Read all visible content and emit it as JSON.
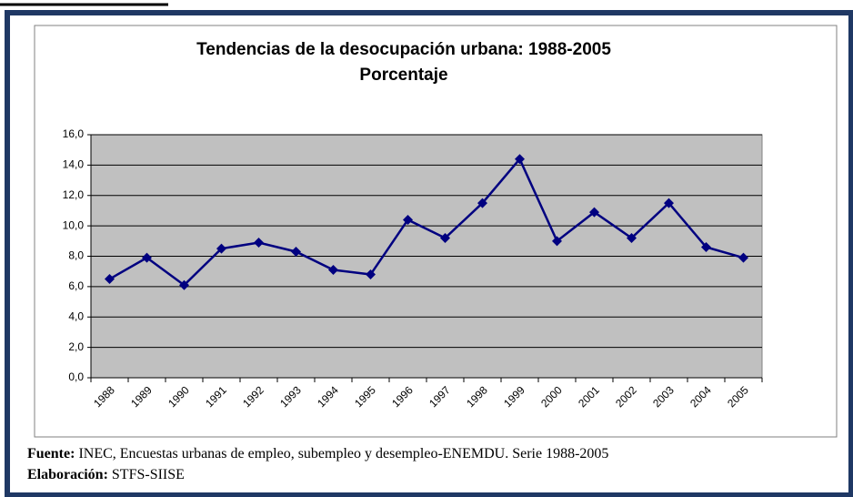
{
  "chart_data": {
    "type": "line",
    "title": "Tendencias de la desocupación urbana: 1988-2005",
    "subtitle": "Porcentaje",
    "categories": [
      "1988",
      "1989",
      "1990",
      "1991",
      "1992",
      "1993",
      "1994",
      "1995",
      "1996",
      "1997",
      "1998",
      "1999",
      "2000",
      "2001",
      "2002",
      "2003",
      "2004",
      "2005"
    ],
    "values": [
      6.5,
      7.9,
      6.1,
      8.5,
      8.9,
      8.3,
      7.1,
      6.8,
      10.4,
      9.2,
      11.5,
      14.4,
      9.0,
      10.9,
      9.2,
      11.5,
      8.6,
      7.9
    ],
    "color": "#000080",
    "ylim": [
      0,
      16
    ],
    "yticks": [
      {
        "value": 0,
        "label": "0,0"
      },
      {
        "value": 2,
        "label": "2,0"
      },
      {
        "value": 4,
        "label": "4,0"
      },
      {
        "value": 6,
        "label": "6,0"
      },
      {
        "value": 8,
        "label": "8,0"
      },
      {
        "value": 10,
        "label": "10,0"
      },
      {
        "value": 12,
        "label": "12,0"
      },
      {
        "value": 14,
        "label": "14,0"
      },
      {
        "value": 16,
        "label": "16,0"
      }
    ],
    "grid": true
  },
  "footer": {
    "source_label": "Fuente:",
    "source_text": " INEC, Encuestas urbanas de empleo, subempleo y desempleo-ENEMDU. Serie 1988-2005",
    "credit_label": "Elaboración:",
    "credit_text": " STFS-SIISE"
  }
}
